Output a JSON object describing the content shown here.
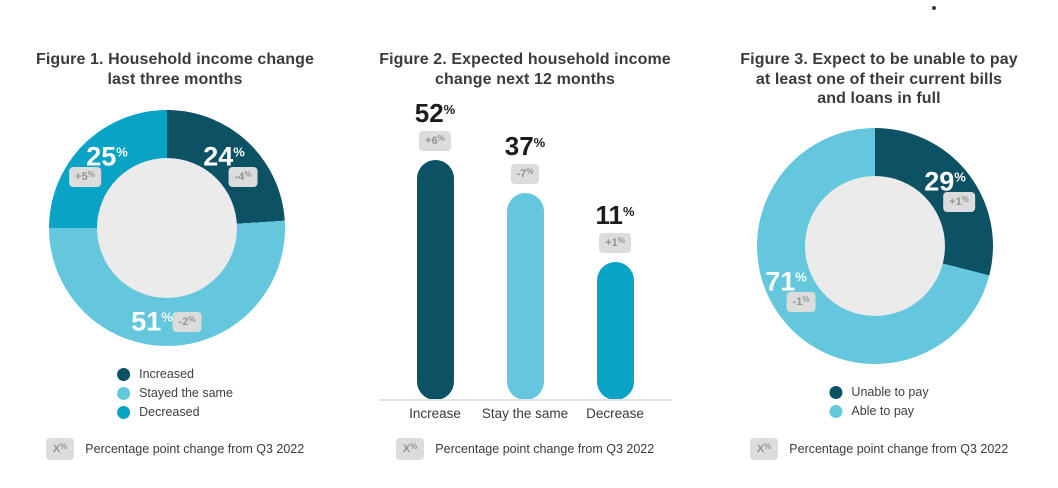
{
  "symbols": {
    "percent": "%"
  },
  "colors": {
    "dark_teal": "#0d5164",
    "light_cyan": "#64c7dd",
    "medium_cyan": "#09a3c6",
    "donut_hole": "#ebebeb",
    "badge_bg": "#dcdcdc",
    "badge_text": "#8f9494",
    "title_text": "#3b3b3b",
    "white_label": "#ffffff"
  },
  "footnote": {
    "badge_symbol": "X",
    "badge_superscript": "%",
    "text": "Percentage point change from Q3 2022"
  },
  "chart_data": [
    {
      "type": "pie",
      "subtype": "donut",
      "title": [
        "Figure 1. Household income change",
        "last three months"
      ],
      "start_angle_deg": 0,
      "direction": "clockwise",
      "legend_position": "bottom",
      "segments": [
        {
          "label": "Increased",
          "value": 24,
          "change": "-4",
          "color": "dark_teal"
        },
        {
          "label": "Stayed the same",
          "value": 51,
          "change": "-2",
          "color": "light_cyan"
        },
        {
          "label": "Decreased",
          "value": 25,
          "change": "+5",
          "color": "medium_cyan"
        }
      ]
    },
    {
      "type": "bar",
      "title": [
        "Figure 2. Expected household income",
        "change next 12 months"
      ],
      "categories": [
        "Increase",
        "Stay the same",
        "Decrease"
      ],
      "values": [
        52,
        37,
        11
      ],
      "changes": [
        "+6",
        "-7",
        "+1"
      ],
      "bar_colors": [
        "dark_teal",
        "light_cyan",
        "medium_cyan"
      ],
      "value_suffix": "%",
      "y_axis_visible": false,
      "gridlines": false,
      "legend_position": "none"
    },
    {
      "type": "pie",
      "subtype": "donut",
      "title": [
        "Figure 3. Expect to be unable to pay",
        "at least one of their current bills",
        "and loans in full"
      ],
      "start_angle_deg": 0,
      "direction": "clockwise",
      "legend_position": "bottom",
      "segments": [
        {
          "label": "Unable to pay",
          "value": 29,
          "change": "+1",
          "color": "dark_teal"
        },
        {
          "label": "Able to pay",
          "value": 71,
          "change": "-1",
          "color": "light_cyan"
        }
      ]
    }
  ]
}
